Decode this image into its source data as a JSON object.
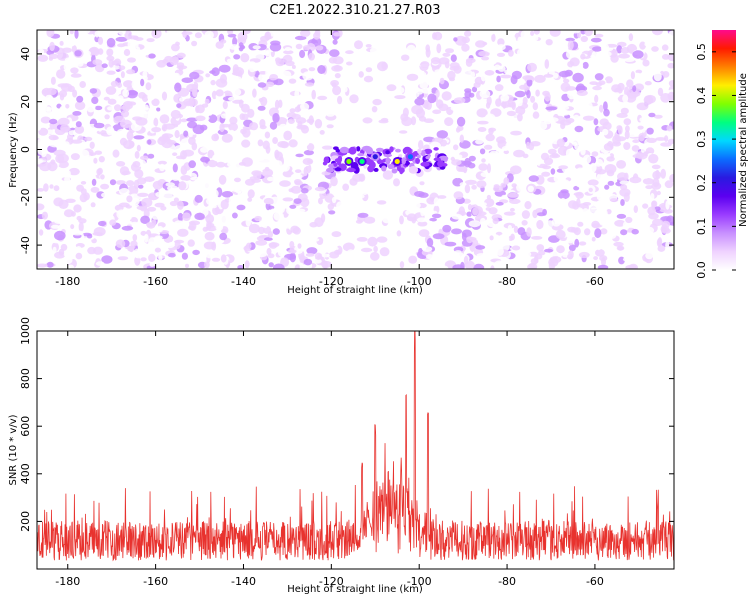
{
  "title": "C2E1.2022.310.21.27.R03",
  "colors": {
    "snr_line": "#e8322e",
    "frame": "#000000",
    "colormap": [
      "#ffffff",
      "#efd2ff",
      "#c890ff",
      "#9a3cff",
      "#5b00f0",
      "#2a1ae0",
      "#0b6cff",
      "#00d8ff",
      "#00ff80",
      "#80ff00",
      "#ffee00",
      "#ff8000",
      "#ff1a00",
      "#ff0a8c"
    ]
  },
  "chart_data": [
    {
      "type": "heatmap",
      "title": "C2E1.2022.310.21.27.R03",
      "xlabel": "Height of straight line (km)",
      "ylabel": "Frequency (Hz)",
      "xlim": [
        -187,
        -42
      ],
      "ylim": [
        -50,
        50
      ],
      "x_ticks": [
        -180,
        -160,
        -140,
        -120,
        -100,
        -80,
        -60
      ],
      "y_ticks": [
        -40,
        -20,
        0,
        20,
        40
      ],
      "colorbar": {
        "label": "Normalized spectral amplitude",
        "range": [
          0,
          0.55
        ],
        "ticks": [
          0.0,
          0.1,
          0.2,
          0.3,
          0.4,
          0.5
        ]
      },
      "features": {
        "background_level": 0.06,
        "quiet_band_km": [
          -118,
          -100
        ],
        "signal_center_km": -108,
        "signal_freq_hz": -4,
        "signal_peaks": [
          {
            "x": -116,
            "y": -5,
            "value": 0.38
          },
          {
            "x": -113,
            "y": -5,
            "value": 0.35
          },
          {
            "x": -105,
            "y": -5,
            "value": 0.42
          },
          {
            "x": -102,
            "y": -3,
            "value": 0.25
          },
          {
            "x": -110,
            "y": -3,
            "value": 0.22
          }
        ]
      }
    },
    {
      "type": "line",
      "xlabel": "Height of straight line (km)",
      "ylabel": "SNR (10 * v/v)",
      "xlim": [
        -187,
        -42
      ],
      "ylim": [
        0,
        1000
      ],
      "x_ticks": [
        -180,
        -160,
        -140,
        -120,
        -100,
        -80,
        -60
      ],
      "y_ticks": [
        200,
        400,
        600,
        800,
        1000
      ],
      "features": {
        "noise_floor_mean": 120,
        "noise_floor_max": 350,
        "peak_x": -101,
        "peak_value": 1000,
        "secondary_peaks": [
          {
            "x": -103,
            "value": 800
          },
          {
            "x": -98,
            "value": 700
          },
          {
            "x": -110,
            "value": 610
          },
          {
            "x": -113,
            "value": 460
          }
        ]
      }
    }
  ]
}
